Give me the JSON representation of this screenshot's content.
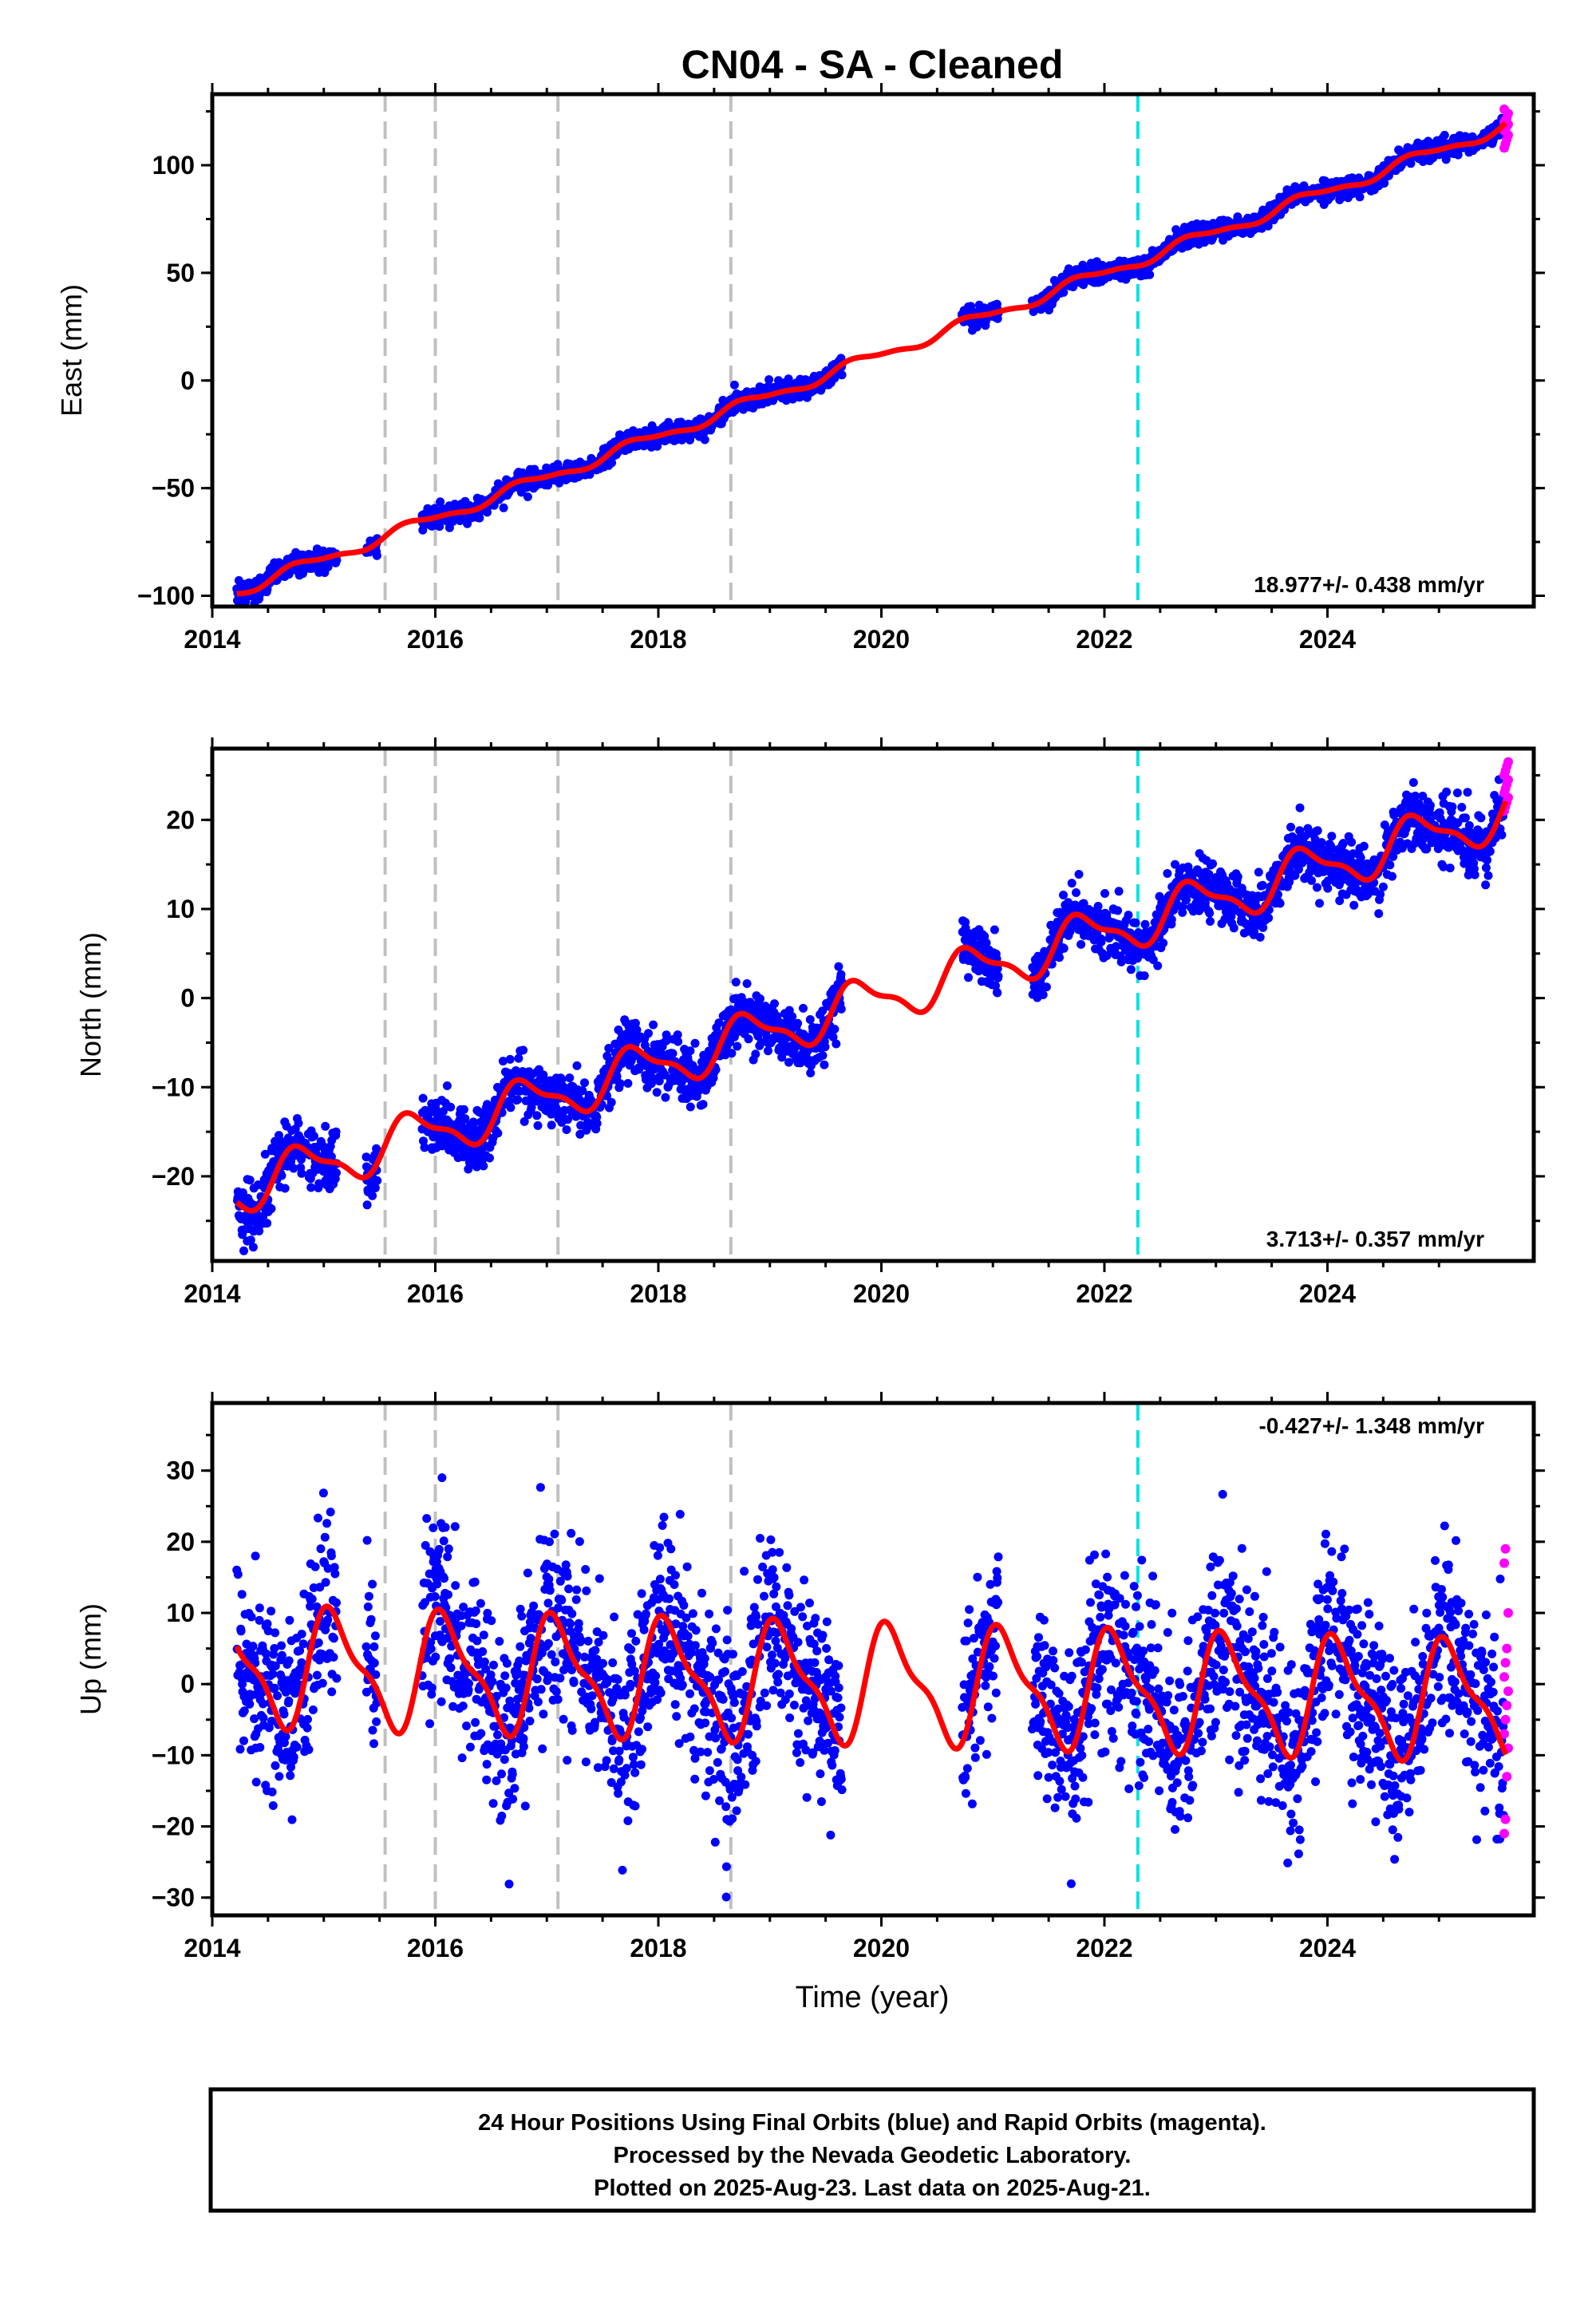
{
  "title": "CN04  - SA - Cleaned",
  "x_axis_label": "Time (year)",
  "caption": [
    "24 Hour Positions Using Final Orbits (blue) and Rapid Orbits (magenta).",
    "Processed by the Nevada Geodetic Laboratory.",
    "Plotted on 2025-Aug-23. Last data on 2025-Aug-21."
  ],
  "colors": {
    "final_orbits": "#0000ff",
    "rapid_orbits": "#ff00ff",
    "model_fit": "#ff0000",
    "offset_line": "#c0c0c0",
    "equipment_line": "#00e5e5"
  },
  "chart_data": [
    {
      "type": "scatter",
      "component": "east",
      "ylabel": "East (mm)",
      "rate_label": "18.977+/- 0.438 mm/yr",
      "rate_mm_yr": 18.977,
      "intercept_2020_mm": 12,
      "xlim": [
        2014.0,
        2025.85
      ],
      "ylim": [
        -105,
        133
      ],
      "xticks": [
        2014,
        2016,
        2018,
        2020,
        2022,
        2024
      ],
      "yticks": [
        -100,
        -50,
        0,
        50,
        100
      ],
      "seasonal": {
        "annual_amp": 2.5,
        "phase_year": 0.55
      },
      "scatter_sd": 2.2,
      "offset_lines_x": [
        2015.55,
        2016.0,
        2017.1,
        2018.65
      ],
      "equipment_line_x": [
        2022.3
      ],
      "rapid_points_y": [
        108,
        110,
        112,
        114,
        116,
        117,
        118,
        119,
        120,
        121,
        122,
        124,
        126
      ],
      "grid": false,
      "legend": "none"
    },
    {
      "type": "scatter",
      "component": "north",
      "ylabel": "North (mm)",
      "rate_label": "3.713+/- 0.357 mm/yr",
      "rate_mm_yr": 3.713,
      "intercept_2020_mm": 0,
      "xlim": [
        2014.0,
        2025.85
      ],
      "ylim": [
        -29.5,
        28
      ],
      "xticks": [
        2014,
        2016,
        2018,
        2020,
        2022,
        2024
      ],
      "yticks": [
        -20,
        -10,
        0,
        10,
        20
      ],
      "seasonal": {
        "annual_amp": 2.5,
        "phase_year": 0.55
      },
      "scatter_sd": 1.6,
      "offset_lines_x": [
        2015.55,
        2016.0,
        2017.1,
        2018.65
      ],
      "equipment_line_x": [
        2022.3
      ],
      "rapid_points_y": [
        21,
        21.5,
        22,
        22.5,
        23,
        23.5,
        24,
        24.5,
        25,
        25.5,
        26,
        26.5
      ],
      "grid": false,
      "legend": "none"
    },
    {
      "type": "scatter",
      "component": "up",
      "ylabel": "Up (mm)",
      "rate_label": "-0.427+/- 1.348 mm/yr",
      "rate_mm_yr": -0.427,
      "intercept_2020_mm": 0,
      "xlim": [
        2014.0,
        2025.85
      ],
      "ylim": [
        -32.5,
        39.5
      ],
      "xticks": [
        2014,
        2016,
        2018,
        2020,
        2022,
        2024
      ],
      "yticks": [
        -30,
        -20,
        -10,
        0,
        10,
        20,
        30
      ],
      "seasonal": {
        "annual_amp": 7.5,
        "phase_year": 0.85
      },
      "scatter_sd": 6.5,
      "offset_lines_x": [
        2015.55,
        2016.0,
        2017.1,
        2018.65
      ],
      "equipment_line_x": [
        2022.3
      ],
      "rapid_points_y": [
        -21,
        -19,
        -13,
        -9,
        -7,
        -5,
        -3,
        -1,
        1,
        3,
        5,
        10,
        17,
        19
      ],
      "grid": false,
      "legend": "none"
    }
  ]
}
